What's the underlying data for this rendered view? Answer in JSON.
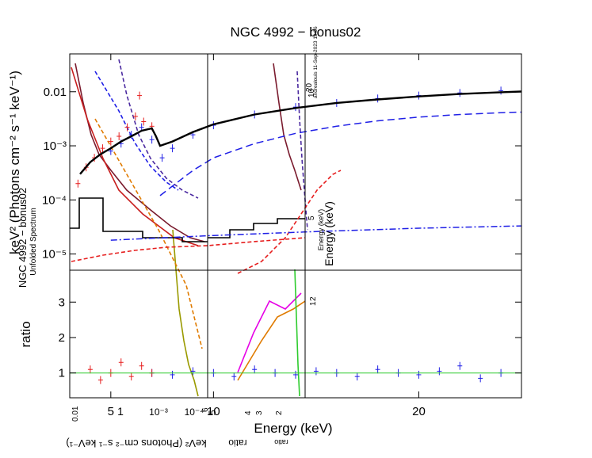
{
  "chart_data": {
    "type": "scatter",
    "title": "NGC 4992 − bonus02",
    "xlabel": "Energy (keV)",
    "top_ylabel": "keV² (Photons cm⁻² s⁻¹ keV⁻¹)",
    "bottom_ylabel": "ratio",
    "xlim": [
      3,
      25
    ],
    "top_ylim_log10": [
      -5.3,
      -1.3
    ],
    "bottom_ylim": [
      0.3,
      3.9
    ],
    "x_ticks": [
      5,
      10,
      20
    ],
    "x_tick_labels": [
      "5",
      "10",
      "20"
    ],
    "top_y_ticks": [
      0.01,
      0.001,
      0.0001,
      1e-05
    ],
    "top_y_tick_labels": [
      "0.01",
      "10⁻³",
      "10⁻⁴",
      "10⁻⁵"
    ],
    "bottom_y_ticks": [
      1,
      2,
      3
    ],
    "bottom_y_tick_labels": [
      "1",
      "2",
      "3"
    ],
    "overlay_texts": {
      "stamp": "andrealouis 11-Sep-2023 19:06",
      "unfolded": "Unfolded Spectrum",
      "mirror_ylabel": "NGC 4992 − bonus02",
      "mirror_xlabel_top": "Energy (keV)",
      "mirror_xlabel_bottom": "Energy (keV)",
      "flipped_ylabel": "keV² (Photons cm⁻² s⁻¹ keV⁻¹)",
      "flipped_ratio": "ratio",
      "flipped_ratio_small": "ratio",
      "small_20": "20",
      "small_10": "10",
      "small_5": "5",
      "small_2": "2",
      "small_1": "1",
      "small_001": "0.01",
      "lower_1": "1",
      "lower_10_3": "10⁻³",
      "lower_10_4": "10⁻⁴",
      "mid_6": "6",
      "mid_5": "5",
      "mid_4": "4",
      "mid_3": "3",
      "mid_2": "2"
    },
    "series": [
      {
        "name": "high-energy data (blue)",
        "color": "#1f1fe6",
        "x": [
          5.0,
          5.5,
          6.0,
          6.5,
          7.0,
          7.5,
          8.0,
          9.0,
          10.0,
          12.0,
          14.0,
          16.0,
          18.0,
          20.0,
          22.0,
          24.0
        ],
        "y": [
          0.0008,
          0.0011,
          0.0016,
          0.0022,
          0.0013,
          0.0006,
          0.0009,
          0.0016,
          0.0024,
          0.0038,
          0.0052,
          0.0062,
          0.0075,
          0.0085,
          0.0095,
          0.0105
        ]
      },
      {
        "name": "low-energy data (red)",
        "color": "#e61e1e",
        "x": [
          3.4,
          3.8,
          4.2,
          4.6,
          5.0,
          5.4,
          5.8,
          6.2,
          6.4,
          6.6,
          7.0
        ],
        "y": [
          0.0002,
          0.0004,
          0.0006,
          0.0009,
          0.0012,
          0.0015,
          0.0022,
          0.0035,
          0.0085,
          0.0028,
          0.0023
        ]
      },
      {
        "name": "total model (black)",
        "color": "#000000",
        "x": [
          3.5,
          4.0,
          4.5,
          5.0,
          5.5,
          6.0,
          6.5,
          7.0,
          7.2,
          7.4,
          8.0,
          9.0,
          10.0,
          12.0,
          14.0,
          16.0,
          18.0,
          20.0,
          22.0,
          24.0,
          25.0
        ],
        "y": [
          0.0003,
          0.0005,
          0.0007,
          0.0009,
          0.0012,
          0.0015,
          0.0019,
          0.0021,
          0.0015,
          0.001,
          0.0012,
          0.0018,
          0.0025,
          0.0038,
          0.005,
          0.0062,
          0.0072,
          0.0082,
          0.0091,
          0.0098,
          0.0101
        ]
      },
      {
        "name": "reflection component (blue dashed)",
        "color": "#1f1fe6",
        "x": [
          7.4,
          8.0,
          9.0,
          10.0,
          12.0,
          14.0,
          16.0,
          18.0,
          20.0,
          22.0,
          24.0,
          25.0
        ],
        "y": [
          0.00012,
          0.00018,
          0.00035,
          0.0006,
          0.0011,
          0.0017,
          0.0023,
          0.0029,
          0.0034,
          0.0038,
          0.0041,
          0.0042
        ]
      },
      {
        "name": "power-law component (blue dash-dot)",
        "color": "#1f1fe6",
        "x": [
          5.0,
          10.0,
          15.0,
          20.0,
          25.0
        ],
        "y": [
          1.8e-05,
          2.2e-05,
          2.6e-05,
          3e-05,
          3.3e-05
        ]
      },
      {
        "name": "ratio (blue)",
        "color": "#1f1fe6",
        "x": [
          7.0,
          8.0,
          9.0,
          10.0,
          11.0,
          12.0,
          13.0,
          14.0,
          15.0,
          16.0,
          17.0,
          18.0,
          19.0,
          20.0,
          21.0,
          22.0,
          23.0,
          24.0
        ],
        "y": [
          1.0,
          0.95,
          1.05,
          1.0,
          0.9,
          1.1,
          1.0,
          0.95,
          1.05,
          1.0,
          0.9,
          1.1,
          1.0,
          0.95,
          1.05,
          1.2,
          0.85,
          1.0
        ]
      },
      {
        "name": "ratio (red)",
        "color": "#e61e1e",
        "x": [
          4.0,
          4.5,
          5.0,
          5.5,
          6.0,
          6.5,
          7.0
        ],
        "y": [
          1.1,
          0.8,
          1.0,
          1.3,
          0.9,
          1.2,
          1.0
        ]
      }
    ],
    "overlay_curves": [
      {
        "name": "overlay dark-red spectrum left",
        "color": "#7a1b2e",
        "x": [
          95,
          105,
          115,
          125,
          140,
          160,
          190,
          215,
          240,
          258
        ],
        "y": [
          80,
          130,
          170,
          195,
          215,
          240,
          265,
          285,
          300,
          305
        ]
      },
      {
        "name": "overlay dark-red spectrum mid",
        "color": "#7a1b2e",
        "x": [
          345,
          352,
          358,
          365,
          372,
          380
        ],
        "y": [
          80,
          130,
          170,
          195,
          215,
          240
        ]
      },
      {
        "name": "overlay red model left",
        "color": "#c81e1e",
        "x": [
          90,
          110,
          130,
          150,
          180,
          220,
          250
        ],
        "y": [
          85,
          150,
          200,
          240,
          270,
          300,
          310
        ]
      },
      {
        "name": "overlay purple dash-dot left",
        "color": "#4b2aa0",
        "x": [
          150,
          160,
          175,
          190,
          210,
          230,
          250
        ],
        "y": [
          75,
          120,
          170,
          200,
          225,
          240,
          250
        ]
      },
      {
        "name": "overlay purple dash-dot mid",
        "color": "#4b2aa0",
        "x": [
          375,
          378,
          381,
          384,
          388
        ],
        "y": [
          90,
          150,
          200,
          240,
          290
        ]
      },
      {
        "name": "overlay olive ratio column",
        "color": "#9a9a00",
        "x": [
          218,
          222,
          226,
          232,
          238,
          245,
          250
        ],
        "y": [
          290,
          340,
          390,
          430,
          460,
          480,
          500
        ]
      },
      {
        "name": "overlay orange dotted",
        "color": "#e07b00",
        "x": [
          120,
          160,
          200,
          235,
          255
        ],
        "y": [
          150,
          220,
          290,
          360,
          440
        ]
      },
      {
        "name": "overlay black step model left",
        "color": "#000000",
        "x": [
          88,
          100,
          100,
          130,
          130,
          180,
          180,
          230,
          230,
          262
        ],
        "y": [
          288,
          288,
          250,
          250,
          292,
          292,
          300,
          300,
          305,
          305
        ]
      },
      {
        "name": "overlay black step model mid",
        "color": "#000000",
        "x": [
          262,
          290,
          290,
          320,
          320,
          350,
          350,
          385
        ],
        "y": [
          300,
          300,
          290,
          290,
          282,
          282,
          276,
          276
        ]
      },
      {
        "name": "overlay red dotted floor",
        "color": "#e61e1e",
        "x": [
          90,
          130,
          170,
          210,
          262,
          320,
          385
        ],
        "y": [
          330,
          322,
          316,
          312,
          310,
          305,
          300
        ]
      },
      {
        "name": "overlay red dashed rise",
        "color": "#e61e1e",
        "x": [
          300,
          330,
          360,
          380,
          400,
          420,
          430
        ],
        "y": [
          345,
          330,
          300,
          270,
          240,
          220,
          215
        ]
      },
      {
        "name": "overlay orange ratio mid",
        "color": "#e07b00",
        "x": [
          300,
          330,
          350,
          370,
          385
        ],
        "y": [
          480,
          430,
          400,
          390,
          380
        ]
      },
      {
        "name": "overlay magenta ratio mid",
        "color": "#e600e6",
        "x": [
          300,
          320,
          340,
          360,
          380
        ],
        "y": [
          470,
          420,
          380,
          390,
          370
        ]
      },
      {
        "name": "overlay green ratio mid",
        "color": "#2ecc2e",
        "x": [
          372,
          374,
          376,
          378
        ],
        "y": [
          340,
          400,
          460,
          500
        ]
      },
      {
        "name": "overlay blue dash-dot tail left",
        "color": "#1f1fe6",
        "x": [
          120,
          150,
          170,
          190,
          210,
          225
        ],
        "y": [
          90,
          140,
          180,
          210,
          230,
          240
        ]
      }
    ]
  }
}
